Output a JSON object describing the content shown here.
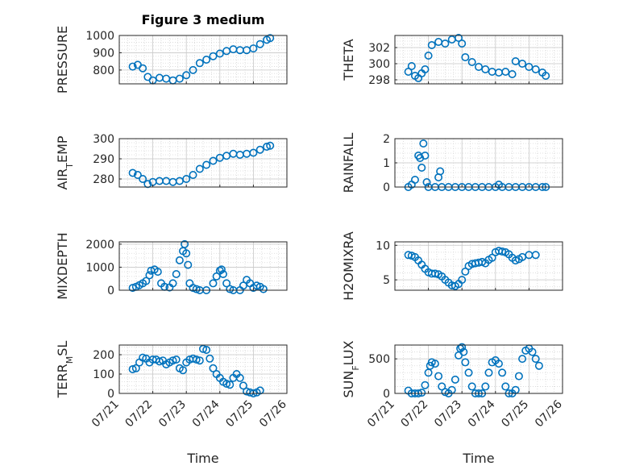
{
  "figure_title": "Figure 3 medium",
  "xlabel": "Time",
  "marker_color": "#0072BD",
  "chart_data": [
    {
      "type": "scatter",
      "ylabel": "PRESSURE",
      "xlim": [
        0,
        5
      ],
      "ylim": [
        720,
        1000
      ],
      "yticks": [
        800,
        900,
        1000
      ],
      "xticklabels": [
        "07/21",
        "07/22",
        "07/23",
        "07/24",
        "07/25",
        "07/26"
      ],
      "grid": true,
      "points": [
        [
          0.4,
          820
        ],
        [
          0.55,
          830
        ],
        [
          0.7,
          810
        ],
        [
          0.85,
          760
        ],
        [
          1.0,
          740
        ],
        [
          1.2,
          755
        ],
        [
          1.4,
          750
        ],
        [
          1.6,
          740
        ],
        [
          1.8,
          750
        ],
        [
          2.0,
          770
        ],
        [
          2.2,
          800
        ],
        [
          2.4,
          840
        ],
        [
          2.6,
          860
        ],
        [
          2.8,
          880
        ],
        [
          3.0,
          895
        ],
        [
          3.2,
          910
        ],
        [
          3.4,
          920
        ],
        [
          3.6,
          915
        ],
        [
          3.8,
          915
        ],
        [
          4.0,
          925
        ],
        [
          4.2,
          950
        ],
        [
          4.4,
          975
        ],
        [
          4.5,
          985
        ]
      ]
    },
    {
      "type": "scatter",
      "ylabel": "THETA",
      "xlim": [
        0,
        5
      ],
      "ylim": [
        297.5,
        303.5
      ],
      "yticks": [
        298,
        300,
        302
      ],
      "xticklabels": [
        "07/21",
        "07/22",
        "07/23",
        "07/24",
        "07/25",
        "07/26"
      ],
      "grid": true,
      "points": [
        [
          0.4,
          299.0
        ],
        [
          0.5,
          299.7
        ],
        [
          0.6,
          298.5
        ],
        [
          0.7,
          298.2
        ],
        [
          0.8,
          298.8
        ],
        [
          0.9,
          299.3
        ],
        [
          1.0,
          301.0
        ],
        [
          1.1,
          302.3
        ],
        [
          1.3,
          302.7
        ],
        [
          1.5,
          302.5
        ],
        [
          1.7,
          303.0
        ],
        [
          1.9,
          303.2
        ],
        [
          2.0,
          302.5
        ],
        [
          2.1,
          300.8
        ],
        [
          2.3,
          300.2
        ],
        [
          2.5,
          299.6
        ],
        [
          2.7,
          299.3
        ],
        [
          2.9,
          299.0
        ],
        [
          3.1,
          298.9
        ],
        [
          3.3,
          299.0
        ],
        [
          3.5,
          298.7
        ],
        [
          3.6,
          300.3
        ],
        [
          3.8,
          300.0
        ],
        [
          4.0,
          299.6
        ],
        [
          4.2,
          299.3
        ],
        [
          4.4,
          298.9
        ],
        [
          4.5,
          298.5
        ]
      ]
    },
    {
      "type": "scatter",
      "ylabel": "AIR_TEMP",
      "xlim": [
        0,
        5
      ],
      "ylim": [
        276,
        300
      ],
      "yticks": [
        280,
        290,
        300
      ],
      "xticklabels": [
        "07/21",
        "07/22",
        "07/23",
        "07/24",
        "07/25",
        "07/26"
      ],
      "grid": true,
      "points": [
        [
          0.4,
          283.0
        ],
        [
          0.55,
          282.0
        ],
        [
          0.7,
          280.0
        ],
        [
          0.85,
          277.5
        ],
        [
          1.0,
          278.5
        ],
        [
          1.2,
          279.0
        ],
        [
          1.4,
          279.0
        ],
        [
          1.6,
          278.5
        ],
        [
          1.8,
          279.0
        ],
        [
          2.0,
          280.0
        ],
        [
          2.2,
          282.0
        ],
        [
          2.4,
          285.0
        ],
        [
          2.6,
          287.0
        ],
        [
          2.8,
          289.0
        ],
        [
          3.0,
          290.5
        ],
        [
          3.2,
          291.5
        ],
        [
          3.4,
          292.5
        ],
        [
          3.6,
          292.0
        ],
        [
          3.8,
          292.5
        ],
        [
          4.0,
          293.0
        ],
        [
          4.2,
          294.5
        ],
        [
          4.4,
          296.0
        ],
        [
          4.5,
          296.5
        ]
      ]
    },
    {
      "type": "scatter",
      "ylabel": "RAINFALL",
      "xlim": [
        0,
        5
      ],
      "ylim": [
        0,
        2
      ],
      "yticks": [
        0,
        1,
        2
      ],
      "xticklabels": [
        "07/21",
        "07/22",
        "07/23",
        "07/24",
        "07/25",
        "07/26"
      ],
      "grid": true,
      "points": [
        [
          0.4,
          0.0
        ],
        [
          0.5,
          0.1
        ],
        [
          0.6,
          0.3
        ],
        [
          0.7,
          1.3
        ],
        [
          0.75,
          1.2
        ],
        [
          0.8,
          0.8
        ],
        [
          0.85,
          1.8
        ],
        [
          0.9,
          1.3
        ],
        [
          0.95,
          0.2
        ],
        [
          1.0,
          0.0
        ],
        [
          1.2,
          0.0
        ],
        [
          1.3,
          0.4
        ],
        [
          1.35,
          0.65
        ],
        [
          1.4,
          0.0
        ],
        [
          1.6,
          0.0
        ],
        [
          1.8,
          0.0
        ],
        [
          2.0,
          0.0
        ],
        [
          2.2,
          0.0
        ],
        [
          2.4,
          0.0
        ],
        [
          2.6,
          0.0
        ],
        [
          2.8,
          0.0
        ],
        [
          3.0,
          0.0
        ],
        [
          3.1,
          0.1
        ],
        [
          3.2,
          0.0
        ],
        [
          3.4,
          0.0
        ],
        [
          3.6,
          0.0
        ],
        [
          3.8,
          0.0
        ],
        [
          4.0,
          0.0
        ],
        [
          4.2,
          0.0
        ],
        [
          4.4,
          0.0
        ],
        [
          4.5,
          0.0
        ]
      ]
    },
    {
      "type": "scatter",
      "ylabel": "MIXDEPTH",
      "xlim": [
        0,
        5
      ],
      "ylim": [
        0,
        2100
      ],
      "yticks": [
        0,
        1000,
        2000
      ],
      "xticklabels": [
        "07/21",
        "07/22",
        "07/23",
        "07/24",
        "07/25",
        "07/26"
      ],
      "grid": true,
      "points": [
        [
          0.4,
          100
        ],
        [
          0.5,
          150
        ],
        [
          0.6,
          220
        ],
        [
          0.7,
          300
        ],
        [
          0.8,
          400
        ],
        [
          0.9,
          650
        ],
        [
          0.95,
          850
        ],
        [
          1.05,
          900
        ],
        [
          1.15,
          800
        ],
        [
          1.25,
          300
        ],
        [
          1.35,
          150
        ],
        [
          1.5,
          120
        ],
        [
          1.6,
          300
        ],
        [
          1.7,
          700
        ],
        [
          1.8,
          1300
        ],
        [
          1.9,
          1700
        ],
        [
          1.95,
          2000
        ],
        [
          2.0,
          1600
        ],
        [
          2.05,
          1100
        ],
        [
          2.1,
          300
        ],
        [
          2.2,
          100
        ],
        [
          2.3,
          50
        ],
        [
          2.4,
          0
        ],
        [
          2.6,
          0
        ],
        [
          2.8,
          300
        ],
        [
          2.9,
          600
        ],
        [
          3.0,
          850
        ],
        [
          3.05,
          900
        ],
        [
          3.1,
          700
        ],
        [
          3.2,
          300
        ],
        [
          3.3,
          50
        ],
        [
          3.4,
          0
        ],
        [
          3.6,
          0
        ],
        [
          3.7,
          200
        ],
        [
          3.8,
          450
        ],
        [
          3.9,
          300
        ],
        [
          4.0,
          100
        ],
        [
          4.1,
          200
        ],
        [
          4.2,
          150
        ],
        [
          4.3,
          50
        ]
      ]
    },
    {
      "type": "scatter",
      "ylabel": "H2OMIXRA",
      "xlim": [
        0,
        5
      ],
      "ylim": [
        3.5,
        10.5
      ],
      "yticks": [
        5,
        10
      ],
      "xticklabels": [
        "07/21",
        "07/22",
        "07/23",
        "07/24",
        "07/25",
        "07/26"
      ],
      "grid": true,
      "points": [
        [
          0.4,
          8.6
        ],
        [
          0.5,
          8.5
        ],
        [
          0.6,
          8.3
        ],
        [
          0.7,
          7.8
        ],
        [
          0.8,
          7.2
        ],
        [
          0.9,
          6.6
        ],
        [
          1.0,
          6.1
        ],
        [
          1.1,
          5.9
        ],
        [
          1.2,
          5.9
        ],
        [
          1.3,
          5.8
        ],
        [
          1.4,
          5.5
        ],
        [
          1.5,
          5.0
        ],
        [
          1.6,
          4.6
        ],
        [
          1.7,
          4.2
        ],
        [
          1.8,
          4.1
        ],
        [
          1.9,
          4.4
        ],
        [
          2.0,
          5.0
        ],
        [
          2.1,
          6.2
        ],
        [
          2.2,
          7.0
        ],
        [
          2.3,
          7.3
        ],
        [
          2.4,
          7.4
        ],
        [
          2.5,
          7.5
        ],
        [
          2.6,
          7.6
        ],
        [
          2.7,
          7.4
        ],
        [
          2.8,
          7.9
        ],
        [
          2.9,
          8.2
        ],
        [
          3.0,
          9.0
        ],
        [
          3.1,
          9.2
        ],
        [
          3.2,
          9.1
        ],
        [
          3.3,
          9.0
        ],
        [
          3.4,
          8.7
        ],
        [
          3.5,
          8.2
        ],
        [
          3.6,
          7.8
        ],
        [
          3.7,
          8.0
        ],
        [
          3.8,
          8.3
        ],
        [
          4.0,
          8.6
        ],
        [
          4.2,
          8.6
        ]
      ]
    },
    {
      "type": "scatter",
      "ylabel": "TERR_MSL",
      "xlim": [
        0,
        5
      ],
      "ylim": [
        0,
        250
      ],
      "yticks": [
        0,
        100,
        200
      ],
      "xticklabels": [
        "07/21",
        "07/22",
        "07/23",
        "07/24",
        "07/25",
        "07/26"
      ],
      "grid": true,
      "points": [
        [
          0.4,
          125
        ],
        [
          0.5,
          130
        ],
        [
          0.6,
          160
        ],
        [
          0.7,
          185
        ],
        [
          0.8,
          180
        ],
        [
          0.9,
          160
        ],
        [
          1.0,
          175
        ],
        [
          1.1,
          175
        ],
        [
          1.2,
          165
        ],
        [
          1.3,
          170
        ],
        [
          1.4,
          150
        ],
        [
          1.5,
          160
        ],
        [
          1.6,
          170
        ],
        [
          1.7,
          175
        ],
        [
          1.8,
          130
        ],
        [
          1.9,
          120
        ],
        [
          2.0,
          160
        ],
        [
          2.1,
          175
        ],
        [
          2.2,
          180
        ],
        [
          2.3,
          175
        ],
        [
          2.4,
          170
        ],
        [
          2.5,
          230
        ],
        [
          2.6,
          225
        ],
        [
          2.7,
          180
        ],
        [
          2.8,
          130
        ],
        [
          2.9,
          100
        ],
        [
          3.0,
          80
        ],
        [
          3.1,
          60
        ],
        [
          3.2,
          50
        ],
        [
          3.3,
          45
        ],
        [
          3.4,
          80
        ],
        [
          3.5,
          100
        ],
        [
          3.6,
          80
        ],
        [
          3.7,
          40
        ],
        [
          3.8,
          10
        ],
        [
          3.9,
          5
        ],
        [
          4.0,
          0
        ],
        [
          4.1,
          5
        ],
        [
          4.2,
          15
        ]
      ]
    },
    {
      "type": "scatter",
      "ylabel": "SUN_FLUX",
      "xlim": [
        0,
        5
      ],
      "ylim": [
        0,
        700
      ],
      "yticks": [
        0,
        500
      ],
      "xticklabels": [
        "07/21",
        "07/22",
        "07/23",
        "07/24",
        "07/25",
        "07/26"
      ],
      "grid": true,
      "points": [
        [
          0.4,
          40
        ],
        [
          0.5,
          0
        ],
        [
          0.6,
          0
        ],
        [
          0.7,
          0
        ],
        [
          0.8,
          10
        ],
        [
          0.9,
          120
        ],
        [
          1.0,
          300
        ],
        [
          1.05,
          400
        ],
        [
          1.1,
          450
        ],
        [
          1.2,
          430
        ],
        [
          1.3,
          250
        ],
        [
          1.4,
          100
        ],
        [
          1.5,
          20
        ],
        [
          1.6,
          0
        ],
        [
          1.7,
          50
        ],
        [
          1.8,
          200
        ],
        [
          1.9,
          550
        ],
        [
          1.95,
          650
        ],
        [
          2.0,
          670
        ],
        [
          2.05,
          600
        ],
        [
          2.1,
          450
        ],
        [
          2.2,
          300
        ],
        [
          2.3,
          100
        ],
        [
          2.4,
          0
        ],
        [
          2.5,
          0
        ],
        [
          2.6,
          0
        ],
        [
          2.7,
          100
        ],
        [
          2.8,
          300
        ],
        [
          2.9,
          450
        ],
        [
          3.0,
          480
        ],
        [
          3.1,
          430
        ],
        [
          3.2,
          300
        ],
        [
          3.3,
          100
        ],
        [
          3.4,
          0
        ],
        [
          3.5,
          0
        ],
        [
          3.6,
          50
        ],
        [
          3.7,
          250
        ],
        [
          3.8,
          500
        ],
        [
          3.9,
          620
        ],
        [
          4.0,
          650
        ],
        [
          4.1,
          600
        ],
        [
          4.2,
          500
        ],
        [
          4.3,
          400
        ]
      ]
    }
  ]
}
